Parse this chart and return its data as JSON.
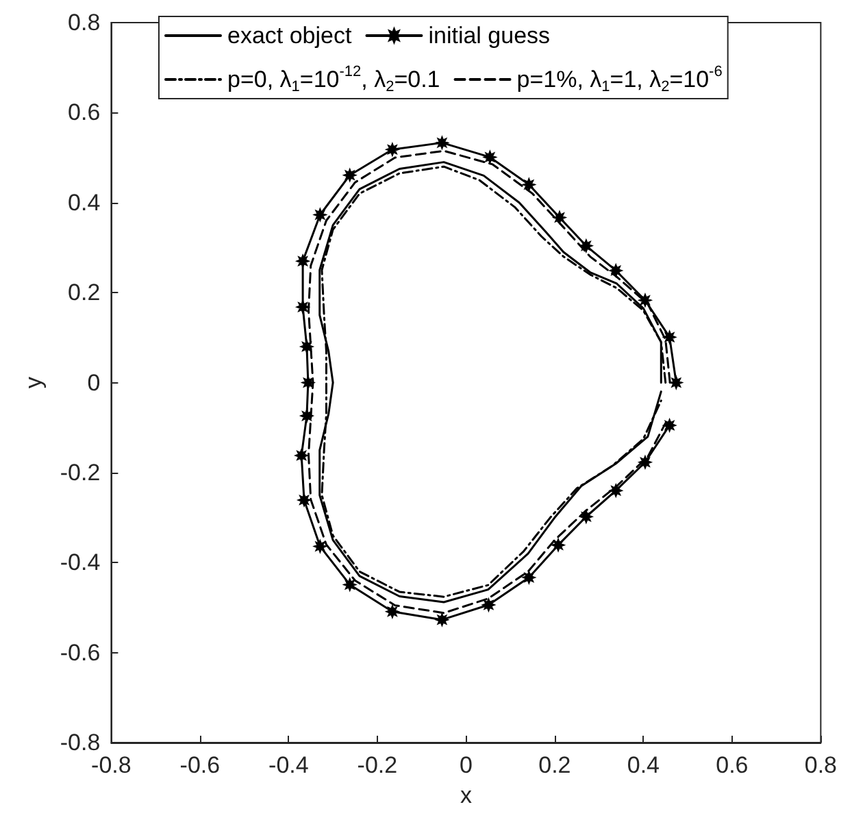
{
  "chart_data": {
    "type": "line",
    "xlabel": "x",
    "ylabel": "y",
    "xlim": [
      -0.8,
      0.8
    ],
    "ylim": [
      -0.8,
      0.8
    ],
    "xticks": [
      -0.8,
      -0.6,
      -0.4,
      -0.2,
      0,
      0.2,
      0.4,
      0.6,
      0.8
    ],
    "yticks": [
      -0.8,
      -0.6,
      -0.4,
      -0.2,
      0,
      0.2,
      0.4,
      0.6,
      0.8
    ],
    "grid": false,
    "legend": "top",
    "series": [
      {
        "name": "exact object",
        "color": "#000000",
        "line_style": "solid",
        "marker": "none",
        "x": [
          0.44,
          0.44,
          0.4,
          0.34,
          0.28,
          0.22,
          0.18,
          0.12,
          0.04,
          -0.05,
          -0.15,
          -0.24,
          -0.3,
          -0.33,
          -0.33,
          -0.31,
          -0.3,
          -0.31,
          -0.33,
          -0.33,
          -0.3,
          -0.24,
          -0.15,
          -0.05,
          0.05,
          0.14,
          0.2,
          0.26,
          0.338,
          0.41,
          0.44
        ],
        "values": [
          0,
          0.09,
          0.165,
          0.22,
          0.245,
          0.29,
          0.335,
          0.4,
          0.46,
          0.49,
          0.475,
          0.43,
          0.35,
          0.25,
          0.15,
          0.07,
          0,
          -0.07,
          -0.15,
          -0.25,
          -0.35,
          -0.43,
          -0.475,
          -0.488,
          -0.46,
          -0.38,
          -0.3,
          -0.23,
          -0.18,
          -0.12,
          -0.02
        ]
      },
      {
        "name": "initial guess",
        "color": "#000000",
        "line_style": "solid",
        "marker": "star",
        "x": [
          0.474,
          0.459,
          0.404,
          0.338,
          0.271,
          0.211,
          0.142,
          0.054,
          -0.054,
          -0.166,
          -0.262,
          -0.329,
          -0.368,
          -0.368,
          -0.359,
          -0.356,
          -0.359,
          -0.371,
          -0.365,
          -0.329,
          -0.262,
          -0.166,
          -0.054,
          0.051,
          0.142,
          0.208,
          0.271,
          0.338,
          0.404,
          0.459
        ],
        "values": [
          0,
          0.101,
          0.183,
          0.249,
          0.304,
          0.367,
          0.44,
          0.501,
          0.533,
          0.518,
          0.461,
          0.373,
          0.27,
          0.168,
          0.08,
          0,
          -0.074,
          -0.162,
          -0.261,
          -0.364,
          -0.449,
          -0.509,
          -0.527,
          -0.494,
          -0.433,
          -0.361,
          -0.298,
          -0.24,
          -0.177,
          -0.095
        ]
      },
      {
        "name": "p=0, λ$_{1}$=10$^{-12}$, λ$_{2}$=0.1",
        "color": "#000000",
        "line_style": "dashdot",
        "marker": "none",
        "x": [
          0.45,
          0.44,
          0.4,
          0.34,
          0.28,
          0.22,
          0.17,
          0.11,
          0.03,
          -0.05,
          -0.15,
          -0.24,
          -0.3,
          -0.325,
          -0.32,
          -0.315,
          -0.315,
          -0.315,
          -0.32,
          -0.325,
          -0.3,
          -0.24,
          -0.15,
          -0.05,
          0.05,
          0.13,
          0.19,
          0.25,
          0.33,
          0.4,
          0.44
        ],
        "values": [
          0,
          0.09,
          0.16,
          0.21,
          0.24,
          0.28,
          0.325,
          0.39,
          0.45,
          0.48,
          0.465,
          0.42,
          0.34,
          0.25,
          0.15,
          0.07,
          0,
          -0.07,
          -0.15,
          -0.25,
          -0.34,
          -0.42,
          -0.465,
          -0.476,
          -0.45,
          -0.375,
          -0.3,
          -0.235,
          -0.185,
          -0.125,
          -0.04
        ]
      },
      {
        "name": "p=1%, λ$_{1}$=1, λ$_{2}$=10$^{-6}$",
        "color": "#000000",
        "line_style": "dashed",
        "marker": "none",
        "x": [
          0.46,
          0.45,
          0.41,
          0.34,
          0.28,
          0.22,
          0.15,
          0.06,
          -0.05,
          -0.16,
          -0.25,
          -0.315,
          -0.35,
          -0.355,
          -0.35,
          -0.345,
          -0.35,
          -0.355,
          -0.35,
          -0.315,
          -0.25,
          -0.16,
          -0.05,
          0.05,
          0.14,
          0.2,
          0.27,
          0.34,
          0.41,
          0.45
        ],
        "values": [
          0,
          0.095,
          0.175,
          0.235,
          0.28,
          0.345,
          0.42,
          0.485,
          0.515,
          0.5,
          0.445,
          0.36,
          0.26,
          0.16,
          0.08,
          0,
          -0.08,
          -0.16,
          -0.26,
          -0.36,
          -0.44,
          -0.495,
          -0.512,
          -0.48,
          -0.42,
          -0.35,
          -0.285,
          -0.23,
          -0.165,
          -0.09
        ]
      }
    ]
  }
}
